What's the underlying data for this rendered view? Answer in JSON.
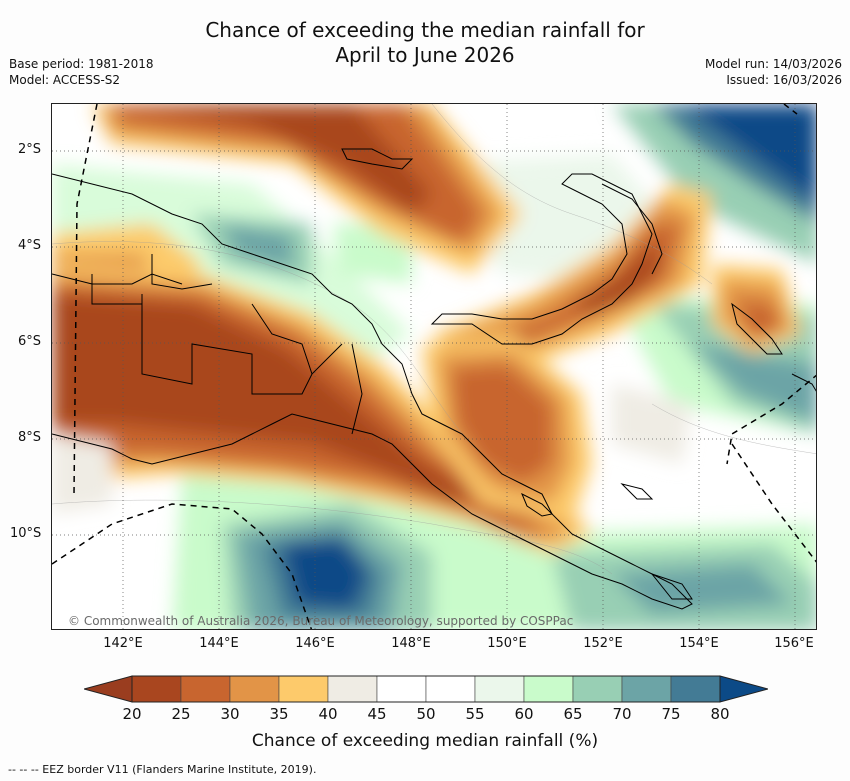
{
  "title": {
    "line1": "Chance of exceeding the median rainfall for",
    "line2": "April to June 2026"
  },
  "meta_left": {
    "base_period": "Base period: 1981-2018",
    "model": "Model: ACCESS-S2"
  },
  "meta_right": {
    "model_run": "Model run: 14/03/2026",
    "issued": "Issued: 16/03/2026"
  },
  "map": {
    "lat_labels": [
      "2°S",
      "4°S",
      "6°S",
      "8°S",
      "10°S"
    ],
    "lon_labels": [
      "142°E",
      "144°E",
      "146°E",
      "148°E",
      "150°E",
      "152°E",
      "154°E",
      "156°E"
    ],
    "credit": "© Commonwealth of Australia 2026, Bureau of Meteorology, supported by COSPPac"
  },
  "colorbar": {
    "title": "Chance of exceeding median rainfall (%)",
    "ticks": [
      "20",
      "25",
      "30",
      "35",
      "40",
      "45",
      "50",
      "55",
      "60",
      "65",
      "70",
      "75",
      "80"
    ],
    "under_color": "#9a3d1f",
    "over_color": "#0c4a87",
    "colors": [
      "#a9461f",
      "#c8652f",
      "#e29447",
      "#fdca6b",
      "#efece4",
      "#ffffff",
      "#ffffff",
      "#ebf7eb",
      "#c9fbcb",
      "#98cfb4",
      "#6ca4a6",
      "#437b95"
    ]
  },
  "footnote": "--  --  -- EEZ border V11 (Flanders Marine Institute, 2019)."
}
